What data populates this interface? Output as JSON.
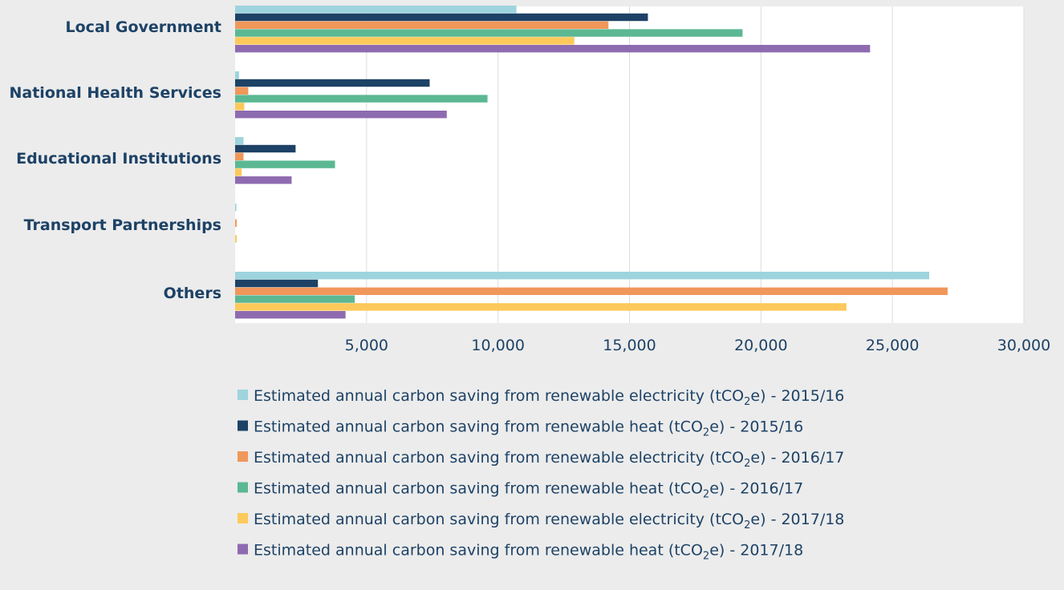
{
  "chart_data": {
    "type": "bar",
    "orientation": "horizontal",
    "categories": [
      "Local Government",
      "National Health Services",
      "Educational Institutions",
      "Transport Partnerships",
      "Others"
    ],
    "xlim": [
      0,
      30000
    ],
    "xticks": [
      5000,
      10000,
      15000,
      20000,
      25000,
      30000
    ],
    "tick_labels": [
      "5,000",
      "10,000",
      "15,000",
      "20,000",
      "25,000",
      "30,000"
    ],
    "grid": true,
    "legend_position": "bottom",
    "series": [
      {
        "name": "Estimated annual carbon saving from renewable electricity (tCO₂e) - 2015/16",
        "name_prefix": "Estimated annual carbon saving from renewable electricity (tCO",
        "name_sub": "2",
        "name_suffix": "e) - 2015/16",
        "color": "#9dd4dd",
        "values": [
          10700,
          150,
          320,
          50,
          26400
        ]
      },
      {
        "name": "Estimated annual carbon saving from renewable heat (tCO₂e) - 2015/16",
        "name_prefix": "Estimated annual carbon saving from renewable heat (tCO",
        "name_sub": "2",
        "name_suffix": "e) - 2015/16",
        "color": "#1d4266",
        "values": [
          15700,
          7400,
          2300,
          0,
          3150
        ]
      },
      {
        "name": "Estimated annual carbon saving from renewable electricity (tCO₂e) - 2016/17",
        "name_prefix": "Estimated annual carbon saving from renewable electricity (tCO",
        "name_sub": "2",
        "name_suffix": "e) - 2016/17",
        "color": "#f0975a",
        "values": [
          14200,
          500,
          320,
          60,
          27100
        ]
      },
      {
        "name": "Estimated annual carbon saving from renewable heat (tCO₂e) - 2016/17",
        "name_prefix": "Estimated annual carbon saving from renewable heat (tCO",
        "name_sub": "2",
        "name_suffix": "e) - 2016/17",
        "color": "#5bb893",
        "values": [
          19300,
          9600,
          3800,
          0,
          4550
        ]
      },
      {
        "name": "Estimated annual carbon saving from renewable electricity (tCO₂e) - 2017/18",
        "name_prefix": "Estimated annual carbon saving from renewable electricity (tCO",
        "name_sub": "2",
        "name_suffix": "e) - 2017/18",
        "color": "#fdc95b",
        "values": [
          12900,
          350,
          250,
          60,
          23250
        ]
      },
      {
        "name": "Estimated annual carbon saving from renewable heat (tCO₂e) - 2017/18",
        "name_prefix": "Estimated annual carbon saving from renewable heat (tCO",
        "name_sub": "2",
        "name_suffix": "e) - 2017/18",
        "color": "#8e6bb0",
        "values": [
          24150,
          8050,
          2150,
          0,
          4200
        ]
      }
    ]
  }
}
